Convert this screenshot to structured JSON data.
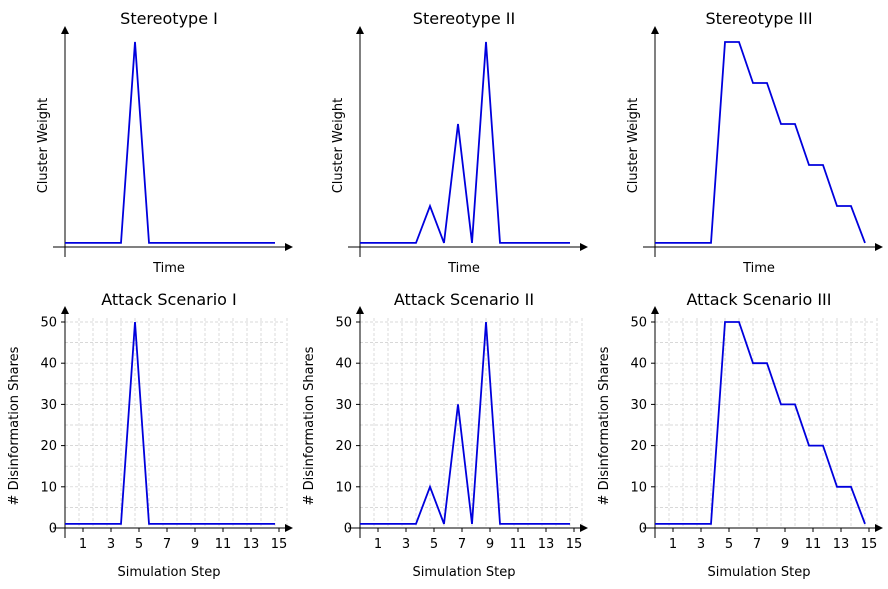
{
  "chart_data": [
    {
      "type": "line",
      "title": "Stereotype I",
      "xlabel": "Time",
      "ylabel": "Cluster Weight",
      "x": [
        0,
        1,
        2,
        3,
        4,
        5,
        6,
        7,
        8,
        9,
        10,
        11,
        12,
        13,
        14,
        15
      ],
      "series": [
        {
          "values": [
            1,
            1,
            1,
            1,
            1,
            50,
            1,
            1,
            1,
            1,
            1,
            1,
            1,
            1,
            1,
            1
          ],
          "color": "#0000dd"
        }
      ],
      "xlim": [
        0,
        15
      ],
      "ylim": [
        0,
        50
      ],
      "grid": false,
      "show_tick_labels": false
    },
    {
      "type": "line",
      "title": "Stereotype II",
      "xlabel": "Time",
      "ylabel": "Cluster Weight",
      "x": [
        0,
        1,
        2,
        3,
        4,
        5,
        6,
        7,
        8,
        9,
        10,
        11,
        12,
        13,
        14,
        15
      ],
      "series": [
        {
          "values": [
            1,
            1,
            1,
            1,
            1,
            10,
            1,
            30,
            1,
            50,
            1,
            1,
            1,
            1,
            1,
            1
          ],
          "color": "#0000dd"
        }
      ],
      "xlim": [
        0,
        15
      ],
      "ylim": [
        0,
        50
      ],
      "grid": false,
      "show_tick_labels": false
    },
    {
      "type": "line",
      "title": "Stereotype III",
      "xlabel": "Time",
      "ylabel": "Cluster Weight",
      "x": [
        0,
        1,
        2,
        3,
        4,
        5,
        6,
        7,
        8,
        9,
        10,
        11,
        12,
        13,
        14,
        15
      ],
      "series": [
        {
          "values": [
            1,
            1,
            1,
            1,
            1,
            50,
            50,
            40,
            40,
            30,
            30,
            20,
            20,
            10,
            10,
            1
          ],
          "color": "#0000dd"
        }
      ],
      "xlim": [
        0,
        15
      ],
      "ylim": [
        0,
        50
      ],
      "grid": false,
      "show_tick_labels": false
    },
    {
      "type": "line",
      "title": "Attack Scenario I",
      "xlabel": "Simulation Step",
      "ylabel": "# Disinformation Shares",
      "x": [
        0,
        1,
        2,
        3,
        4,
        5,
        6,
        7,
        8,
        9,
        10,
        11,
        12,
        13,
        14,
        15
      ],
      "series": [
        {
          "values": [
            1,
            1,
            1,
            1,
            1,
            50,
            1,
            1,
            1,
            1,
            1,
            1,
            1,
            1,
            1,
            1
          ],
          "color": "#0000dd"
        }
      ],
      "xlim": [
        0,
        15
      ],
      "ylim": [
        0,
        50
      ],
      "xticks": [
        "1",
        "3",
        "5",
        "7",
        "9",
        "11",
        "13",
        "15"
      ],
      "yticks": [
        "0",
        "10",
        "20",
        "30",
        "40",
        "50"
      ],
      "grid": true,
      "show_tick_labels": true
    },
    {
      "type": "line",
      "title": "Attack Scenario II",
      "xlabel": "Simulation Step",
      "ylabel": "# Disinformation Shares",
      "x": [
        0,
        1,
        2,
        3,
        4,
        5,
        6,
        7,
        8,
        9,
        10,
        11,
        12,
        13,
        14,
        15
      ],
      "series": [
        {
          "values": [
            1,
            1,
            1,
            1,
            1,
            10,
            1,
            30,
            1,
            50,
            1,
            1,
            1,
            1,
            1,
            1
          ],
          "color": "#0000dd"
        }
      ],
      "xlim": [
        0,
        15
      ],
      "ylim": [
        0,
        50
      ],
      "xticks": [
        "1",
        "3",
        "5",
        "7",
        "9",
        "11",
        "13",
        "15"
      ],
      "yticks": [
        "0",
        "10",
        "20",
        "30",
        "40",
        "50"
      ],
      "grid": true,
      "show_tick_labels": true
    },
    {
      "type": "line",
      "title": "Attack Scenario III",
      "xlabel": "Simulation Step",
      "ylabel": "# Disinformation Shares",
      "x": [
        0,
        1,
        2,
        3,
        4,
        5,
        6,
        7,
        8,
        9,
        10,
        11,
        12,
        13,
        14,
        15
      ],
      "series": [
        {
          "values": [
            1,
            1,
            1,
            1,
            1,
            50,
            50,
            40,
            40,
            30,
            30,
            20,
            20,
            10,
            10,
            1
          ],
          "color": "#0000dd"
        }
      ],
      "xlim": [
        0,
        15
      ],
      "ylim": [
        0,
        50
      ],
      "xticks": [
        "1",
        "3",
        "5",
        "7",
        "9",
        "11",
        "13",
        "15"
      ],
      "yticks": [
        "0",
        "10",
        "20",
        "30",
        "40",
        "50"
      ],
      "grid": true,
      "show_tick_labels": true
    }
  ]
}
